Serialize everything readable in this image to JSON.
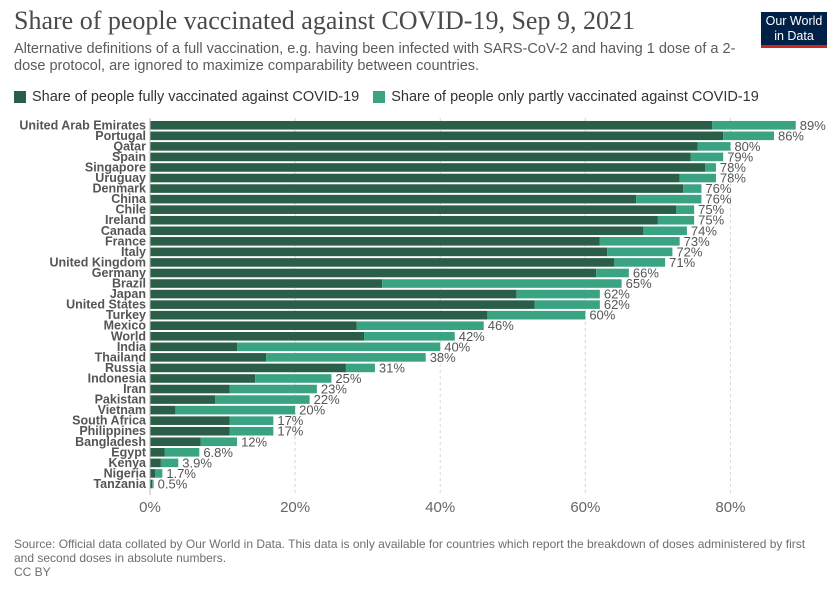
{
  "header": {
    "title": "Share of people vaccinated against COVID-19, Sep 9, 2021",
    "subtitle": "Alternative definitions of a full vaccination, e.g. having been infected with SARS-CoV-2 and having 1 dose of a 2-dose protocol, are ignored to maximize comparability between countries."
  },
  "logo": {
    "line1": "Our World",
    "line2": "in Data"
  },
  "colors": {
    "full": "#2a5e48",
    "partial": "#3aa382",
    "grid": "#d6d6d6",
    "label": "#555555",
    "logo_bg": "#002147",
    "logo_accent": "#ce261e"
  },
  "legend": {
    "full": "Share of people fully vaccinated against COVID-19",
    "partial": "Share of people only partly vaccinated against COVID-19"
  },
  "chart_data": {
    "type": "bar",
    "orientation": "horizontal",
    "stacked": true,
    "title": "Share of people vaccinated against COVID-19, Sep 9, 2021",
    "xlim": [
      0,
      90
    ],
    "xticks": [
      0,
      20,
      40,
      60,
      80
    ],
    "xtick_labels": [
      "0%",
      "20%",
      "40%",
      "60%",
      "80%"
    ],
    "categories": [
      "United Arab Emirates",
      "Portugal",
      "Qatar",
      "Spain",
      "Singapore",
      "Uruguay",
      "Denmark",
      "China",
      "Chile",
      "Ireland",
      "Canada",
      "France",
      "Italy",
      "United Kingdom",
      "Germany",
      "Brazil",
      "Japan",
      "United States",
      "Turkey",
      "Mexico",
      "World",
      "India",
      "Thailand",
      "Russia",
      "Indonesia",
      "Iran",
      "Pakistan",
      "Vietnam",
      "South Africa",
      "Philippines",
      "Bangladesh",
      "Egypt",
      "Kenya",
      "Nigeria",
      "Tanzania"
    ],
    "series": [
      {
        "name": "Share of people fully vaccinated against COVID-19",
        "values": [
          77.5,
          79,
          75.5,
          74.5,
          76.5,
          73,
          73.5,
          67,
          72.5,
          70,
          68,
          62,
          63,
          64,
          61.5,
          32,
          50.5,
          53,
          46.5,
          28.5,
          29.5,
          12,
          16,
          27,
          14.5,
          11,
          9,
          3.5,
          11,
          11,
          7,
          2,
          1.5,
          0.7,
          0.3
        ]
      },
      {
        "name": "Share of people only partly vaccinated against COVID-19",
        "values": [
          11.5,
          7,
          4.5,
          4.5,
          1.5,
          5,
          2.5,
          9,
          2.5,
          5,
          6,
          11,
          9,
          7,
          4.5,
          33,
          11.5,
          9,
          13.5,
          17.5,
          12.5,
          28,
          22,
          4,
          10.5,
          12,
          13,
          16.5,
          6,
          6,
          5,
          4.8,
          2.4,
          1,
          0.2
        ]
      }
    ],
    "totals": [
      89,
      86,
      80,
      79,
      78,
      78,
      76,
      76,
      75,
      75,
      74,
      73,
      72,
      71,
      66,
      65,
      62,
      62,
      60,
      46,
      42,
      40,
      38,
      31,
      25,
      23,
      22,
      20,
      17,
      17,
      12,
      6.8,
      3.9,
      1.7,
      0.5
    ],
    "total_labels": [
      "89%",
      "86%",
      "80%",
      "79%",
      "78%",
      "78%",
      "76%",
      "76%",
      "75%",
      "75%",
      "74%",
      "73%",
      "72%",
      "71%",
      "66%",
      "65%",
      "62%",
      "62%",
      "60%",
      "46%",
      "42%",
      "40%",
      "38%",
      "31%",
      "25%",
      "23%",
      "22%",
      "20%",
      "17%",
      "17%",
      "12%",
      "6.8%",
      "3.9%",
      "1.7%",
      "0.5%"
    ]
  },
  "footer": {
    "source": "Source: Official data collated by Our World in Data. This data is only available for countries which report the breakdown of doses administered by first and second doses in absolute numbers.",
    "license": "CC BY"
  }
}
